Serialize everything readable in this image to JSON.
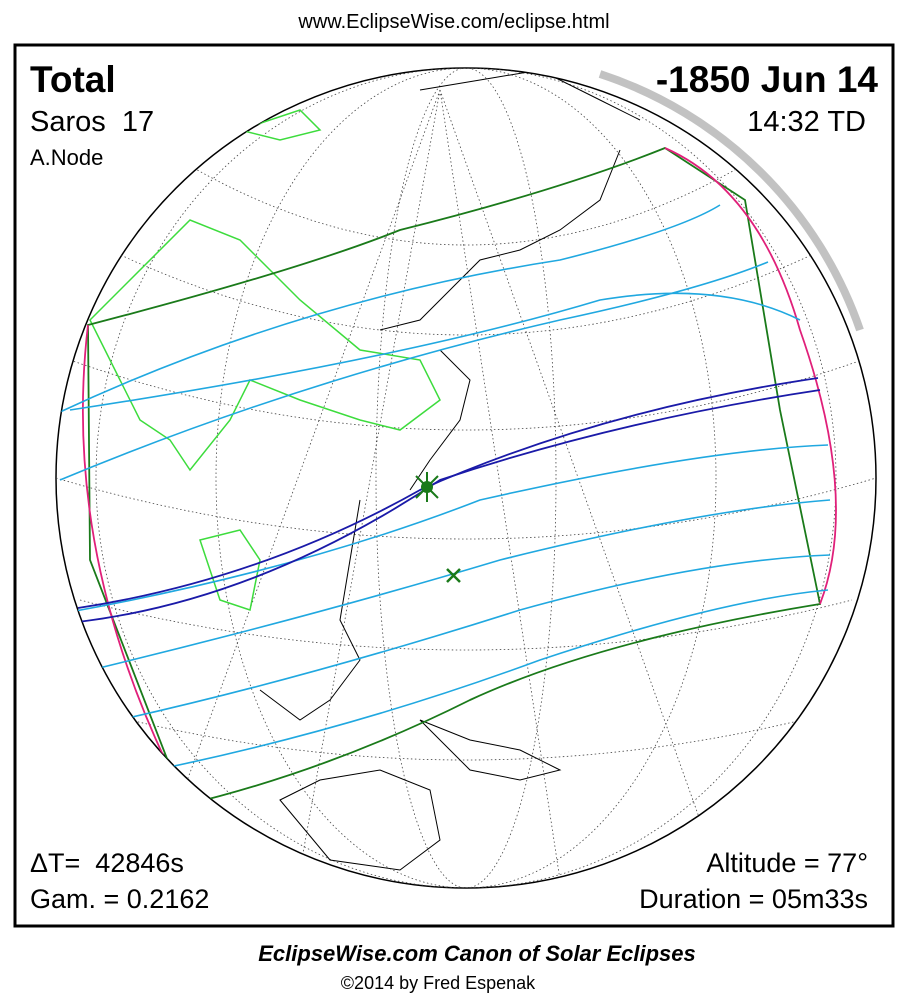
{
  "header": {
    "url": "www.EclipseWise.com/eclipse.html"
  },
  "panel": {
    "top_left": {
      "type": "Total",
      "saros": "Saros  17",
      "node": "A.Node"
    },
    "top_right": {
      "date": "-1850 Jun 14",
      "time": "14:32 TD"
    },
    "bottom_left": {
      "delta_t": "ΔT=  42846s",
      "gamma": "Gam. = 0.2162"
    },
    "bottom_right": {
      "altitude": "Altitude = 77°",
      "duration": "Duration = 05m33s"
    }
  },
  "footer": {
    "title": "EclipseWise.com Canon of Solar Eclipses",
    "credit": "©2014 by Fred Espenak"
  }
}
